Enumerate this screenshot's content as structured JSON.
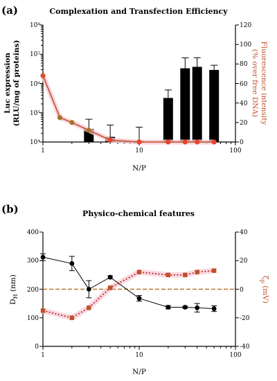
{
  "figure": {
    "panels": [
      {
        "label": "(a)",
        "title": "Complexation and Transfection Efficiency",
        "xlabel": "N/P",
        "ylabel_lines": [
          "Luc expression",
          "(RLU/mg of proteins)"
        ],
        "y2label_lines": [
          "Fluorescence intensity",
          "(% over free DNA)"
        ],
        "x_ticks": [
          "1",
          "10",
          "100"
        ],
        "y_ticks": [
          "10⁴",
          "10⁵",
          "10⁶",
          "10⁷",
          "10⁸"
        ],
        "y2_ticks": [
          "0",
          "20",
          "40",
          "60",
          "80",
          "100",
          "120"
        ]
      },
      {
        "label": "(b)",
        "title": "Physico-chemical features",
        "xlabel": "N/P",
        "ylabel_main": "D",
        "ylabel_sub": "H",
        "ylabel_unit": " (nm)",
        "y2label_main": "ζ",
        "y2label_sub": "p",
        "y2label_unit": " (mV)",
        "x_ticks": [
          "1",
          "10",
          "100"
        ],
        "y_ticks": [
          "0",
          "100",
          "200",
          "300",
          "400"
        ],
        "y2_ticks": [
          "-40",
          "-20",
          "0",
          "20",
          "40"
        ]
      }
    ]
  },
  "chart_data": [
    {
      "type": "bar",
      "title": "Complexation and Transfection Efficiency",
      "xlabel": "N/P",
      "ylabel": "Luc expression (RLU/mg of proteins)",
      "y2label": "Fluorescence intensity (% over free DNA)",
      "xscale": "log",
      "xlim": [
        1,
        100
      ],
      "yscale": "log",
      "ylim": [
        10000,
        100000000
      ],
      "y2lim": [
        0,
        120
      ],
      "bar_color": "#000000",
      "line_color": "#c0502a",
      "bars": {
        "x": [
          3,
          5,
          10,
          20,
          30,
          40,
          60
        ],
        "values": [
          28000,
          15000,
          11000,
          320000,
          3300000,
          3700000,
          2900000
        ],
        "err_upper": [
          60000,
          38000,
          32000,
          600000,
          7500000,
          7600000,
          4200000
        ]
      },
      "line": {
        "x": [
          1,
          1.5,
          2,
          3,
          5,
          10,
          20,
          30,
          40,
          60
        ],
        "values": [
          68,
          25,
          20,
          12,
          2,
          0,
          0,
          0,
          0,
          0
        ]
      }
    },
    {
      "type": "line",
      "title": "Physico-chemical features",
      "xlabel": "N/P",
      "ylabel": "DH (nm)",
      "y2label": "ζp (mV)",
      "xscale": "log",
      "xlim": [
        1,
        100
      ],
      "ylim": [
        0,
        400
      ],
      "y2lim": [
        -40,
        40
      ],
      "reference_line_y2": 0,
      "series": [
        {
          "axis": "left",
          "color": "#000000",
          "x": [
            1,
            2,
            3,
            5,
            10,
            20,
            30,
            40,
            60
          ],
          "values": [
            312,
            290,
            200,
            242,
            168,
            137,
            137,
            135,
            132
          ],
          "err": [
            12,
            25,
            30,
            5,
            10,
            6,
            4,
            15,
            10
          ]
        },
        {
          "axis": "right",
          "color": "#c0502a",
          "x": [
            1,
            2,
            3,
            5,
            10,
            20,
            30,
            40,
            60
          ],
          "values": [
            -15,
            -20,
            -13,
            1,
            12,
            10,
            10,
            12,
            13
          ]
        }
      ]
    }
  ]
}
